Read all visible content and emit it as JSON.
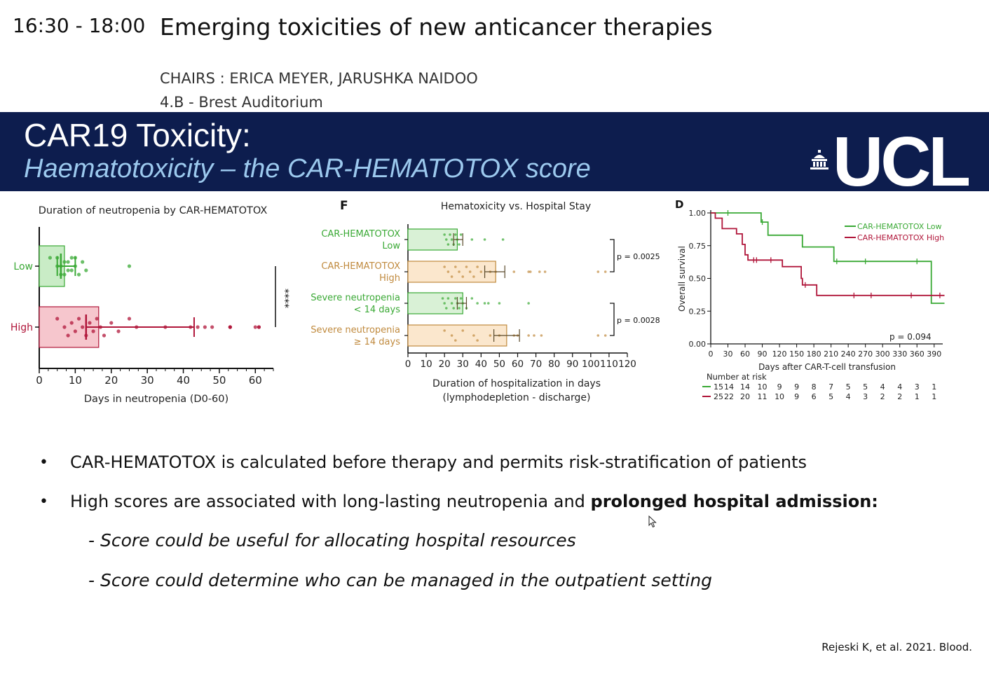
{
  "session": {
    "time": "16:30 - 18:00",
    "title": "Emerging toxicities of new anticancer therapies",
    "chairs": "CHAIRS : ERICA MEYER, JARUSHKA NAIDOO",
    "room": "4.B - Brest Auditorium"
  },
  "slide": {
    "title": "CAR19 Toxicity:",
    "subtitle": "Haematotoxicity – the CAR-HEMATOTOX score",
    "logo_text": "UCL",
    "bullets": [
      {
        "text": "CAR-HEMATOTOX is calculated before therapy and permits risk-stratification of patients"
      },
      {
        "text": "High scores are associated with long-lasting neutropenia and ",
        "bold": "prolonged hospital admission:"
      }
    ],
    "sub_bullets": [
      "- Score could be useful for allocating hospital resources",
      "- Score could determine who can be managed in the outpatient setting"
    ],
    "citation": "Rejeski K, et al. 2021. Blood."
  },
  "colors": {
    "banner": "#0d1d4e",
    "subtitle": "#9cc9ee",
    "low_green": "#3aa935",
    "high_red": "#b0163a",
    "bar_orange": "#c08a3e"
  },
  "chart_data": [
    {
      "type": "bar",
      "title": "Duration of neutropenia by CAR-HEMATOTOX",
      "xlabel": "Days in neutropenia (D0-60)",
      "ylabel": "",
      "categories": [
        "Low",
        "High"
      ],
      "values": [
        7,
        16.5
      ],
      "median": [
        6,
        13
      ],
      "error": [
        [
          5,
          10
        ],
        [
          13,
          43
        ]
      ],
      "xlim": [
        0,
        65
      ],
      "xticks": [
        0,
        10,
        20,
        30,
        40,
        50,
        60
      ],
      "points": [
        [
          3,
          5,
          6,
          7,
          8,
          9,
          10,
          11,
          12,
          13,
          5,
          6,
          7,
          8,
          9,
          10,
          25
        ],
        [
          5,
          7,
          8,
          9,
          10,
          11,
          12,
          13,
          14,
          15,
          16,
          17,
          18,
          20,
          22,
          25,
          27,
          35,
          42,
          44,
          46,
          48,
          53,
          53,
          53,
          60,
          61,
          61
        ]
      ],
      "significance": "****"
    },
    {
      "type": "bar",
      "panel": "F",
      "title": "Hematoxicity vs. Hospital Stay",
      "xlabel": "Duration of hospitalization in days",
      "xlabel2": "(lymphodepletion - discharge)",
      "categories": [
        "CAR-HEMATOTOX Low",
        "CAR-HEMATOTOX High",
        "Severe neutropenia < 14 days",
        "Severe neutropenia ≥ 14 days"
      ],
      "category_lines": [
        [
          "CAR-HEMATOTOX",
          "Low"
        ],
        [
          "CAR-HEMATOTOX",
          "High"
        ],
        [
          "Severe neutropenia",
          "< 14 days"
        ],
        [
          "Severe neutropenia",
          "≥ 14 days"
        ]
      ],
      "values": [
        27,
        48,
        30,
        54
      ],
      "error": [
        [
          25,
          30
        ],
        [
          42,
          53
        ],
        [
          27,
          32
        ],
        [
          47,
          61
        ]
      ],
      "points": [
        [
          20,
          21,
          22,
          23,
          24,
          25,
          26,
          27,
          28,
          29,
          35,
          42,
          52
        ],
        [
          20,
          22,
          24,
          26,
          28,
          30,
          32,
          34,
          36,
          38,
          40,
          45,
          48,
          58,
          66,
          67,
          72,
          75,
          104,
          108
        ],
        [
          19,
          20,
          21,
          22,
          24,
          25,
          26,
          27,
          28,
          29,
          30,
          32,
          35,
          38,
          42,
          44,
          50,
          66
        ],
        [
          20,
          24,
          26,
          30,
          36,
          38,
          45,
          50,
          58,
          60,
          66,
          69,
          73,
          104,
          108
        ]
      ],
      "xlim": [
        0,
        120
      ],
      "xticks": [
        0,
        10,
        20,
        30,
        40,
        50,
        60,
        70,
        80,
        90,
        100,
        110,
        120
      ],
      "pvalues": [
        "p = 0.0025",
        "p = 0.0028"
      ]
    },
    {
      "type": "line",
      "panel": "D",
      "ylabel": "Overall survival",
      "xlabel": "Days after CAR-T-cell transfusion",
      "xlim": [
        0,
        405
      ],
      "ylim": [
        0,
        1
      ],
      "xticks": [
        0,
        30,
        60,
        90,
        120,
        150,
        180,
        210,
        240,
        270,
        300,
        330,
        360,
        390
      ],
      "yticks": [
        "0.00",
        "0.25",
        "0.50",
        "0.75",
        "1.00"
      ],
      "series": [
        {
          "name": "CAR-HEMATOTOX Low",
          "x": [
            0,
            88,
            88,
            100,
            100,
            160,
            160,
            215,
            215,
            385,
            385,
            408
          ],
          "y": [
            1.0,
            1.0,
            0.93,
            0.93,
            0.83,
            0.83,
            0.74,
            0.74,
            0.63,
            0.63,
            0.31,
            0.31
          ],
          "censor_x": [
            30,
            90,
            220,
            270,
            360
          ]
        },
        {
          "name": "CAR-HEMATOTOX High",
          "x": [
            0,
            8,
            8,
            20,
            20,
            45,
            45,
            55,
            55,
            60,
            60,
            65,
            65,
            72,
            72,
            125,
            125,
            158,
            158,
            160,
            160,
            185,
            185,
            408
          ],
          "y": [
            1.0,
            1.0,
            0.96,
            0.96,
            0.88,
            0.88,
            0.84,
            0.84,
            0.76,
            0.76,
            0.68,
            0.68,
            0.64,
            0.64,
            0.64,
            0.64,
            0.59,
            0.59,
            0.5,
            0.5,
            0.45,
            0.45,
            0.37,
            0.37
          ],
          "censor_x": [
            75,
            80,
            105,
            165,
            250,
            280,
            350,
            400
          ]
        }
      ],
      "risk_label": "Number at risk",
      "risk_low": [
        "15",
        "14",
        "14",
        "10",
        "9",
        "9",
        "8",
        "7",
        "5",
        "5",
        "4",
        "4",
        "3",
        "1"
      ],
      "risk_high": [
        "25",
        "22",
        "20",
        "11",
        "10",
        "9",
        "6",
        "5",
        "4",
        "3",
        "2",
        "2",
        "1",
        "1"
      ],
      "pvalue": "p = 0.094",
      "legend": "top-right"
    }
  ]
}
